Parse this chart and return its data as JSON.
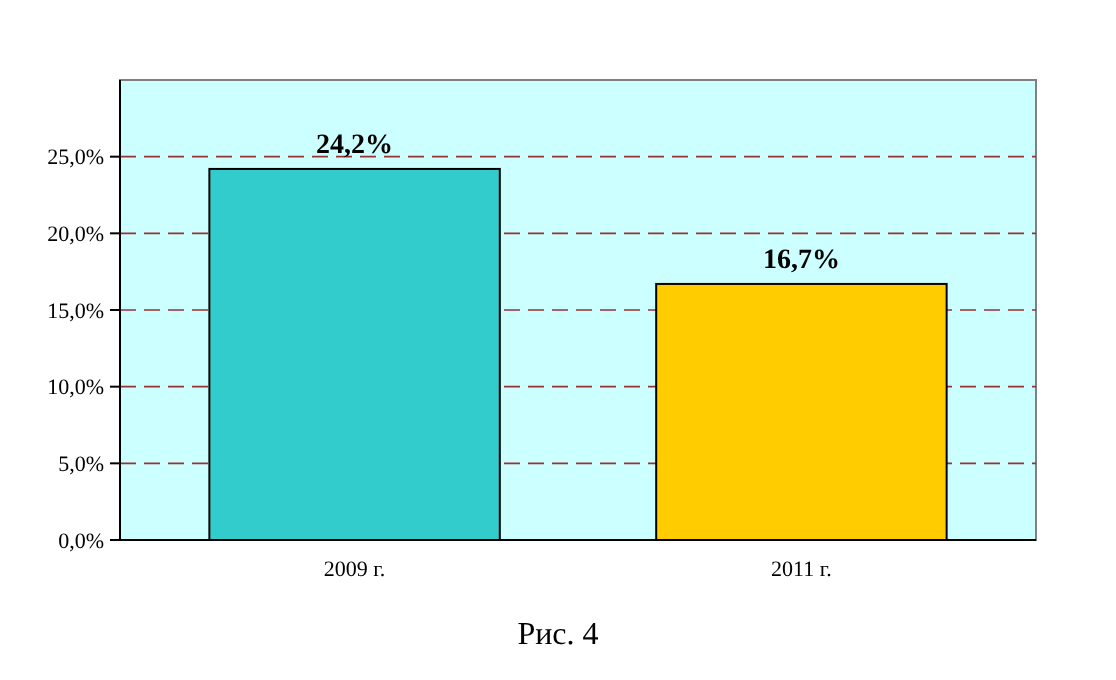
{
  "chart_data": {
    "type": "bar",
    "categories": [
      "2009 г.",
      "2011 г."
    ],
    "values": [
      24.2,
      16.7
    ],
    "colors": [
      "#33cccc",
      "#ffcc00"
    ],
    "value_labels": [
      "24,2%",
      "16,7%"
    ],
    "ylim": [
      0,
      30
    ],
    "yticks": [
      {
        "value": 0,
        "label": "0,0%"
      },
      {
        "value": 5,
        "label": "5,0%"
      },
      {
        "value": 10,
        "label": "10,0%"
      },
      {
        "value": 15,
        "label": "15,0%"
      },
      {
        "value": 20,
        "label": "20,0%"
      },
      {
        "value": 25,
        "label": "25,0%"
      }
    ],
    "grid": "y",
    "annotations": [
      "Рис. 4"
    ]
  }
}
